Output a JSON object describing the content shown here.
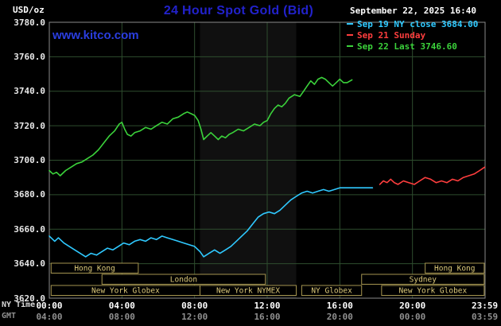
{
  "header": {
    "unit_label": "USD/oz",
    "title": "24 Hour Spot Gold (Bid)",
    "datetime": "September 22, 2025 16:40",
    "watermark": "www.kitco.com"
  },
  "legend": [
    {
      "label": "Sep 19 NY close 3684.00",
      "color": "#2fc9ff"
    },
    {
      "label": "Sep 21 Sunday",
      "color": "#ff3e3e"
    },
    {
      "label": "Sep 22 Last 3746.60",
      "color": "#3bd23b"
    }
  ],
  "colors": {
    "background": "#000000",
    "grid": "#2e4d2e",
    "border": "#8a8a8a",
    "band": "#101010",
    "session_border": "#a59550",
    "session_text": "#dcc97a",
    "title": "#2222cc",
    "watermark": "#2a3ee0",
    "axis_text": "#e8e8e8"
  },
  "axes": {
    "y_unit": "USD/oz",
    "x_rows": [
      {
        "label": "NY Time",
        "color": "#d8d8d8",
        "tick_color": "#ffffff",
        "ticks": [
          "00:00",
          "04:00",
          "08:00",
          "12:00",
          "16:00",
          "20:00",
          "23:59"
        ]
      },
      {
        "label": "GMT",
        "color": "#909090",
        "tick_color": "#909090",
        "ticks": [
          "04:00",
          "08:00",
          "12:00",
          "16:00",
          "20:00",
          "00:00",
          "03:59"
        ]
      }
    ]
  },
  "chart_data": {
    "type": "line",
    "title": "24 Hour Spot Gold (Bid)",
    "xlabel": "NY Time (hours)",
    "ylabel": "USD/oz",
    "xlim": [
      0,
      24
    ],
    "ylim": [
      3620,
      3780
    ],
    "grid": true,
    "legend_position": "top-right",
    "y_ticks": [
      3780,
      3760,
      3740,
      3720,
      3700,
      3680,
      3660,
      3640,
      3620
    ],
    "x_tick_hours": [
      0,
      4,
      8,
      12,
      16,
      20,
      23.983
    ],
    "band": {
      "start": 8.3,
      "end": 13.6
    },
    "series": [
      {
        "name": "sep19-ny-close",
        "label": "Sep 19 NY close 3684.00",
        "color": "#2fc9ff",
        "close": 3684.0,
        "points": [
          [
            0,
            3656
          ],
          [
            0.3,
            3653
          ],
          [
            0.5,
            3655
          ],
          [
            0.8,
            3652
          ],
          [
            1.1,
            3650
          ],
          [
            1.4,
            3648
          ],
          [
            1.7,
            3646
          ],
          [
            2,
            3644
          ],
          [
            2.3,
            3646
          ],
          [
            2.6,
            3645
          ],
          [
            2.9,
            3647
          ],
          [
            3.2,
            3649
          ],
          [
            3.5,
            3648
          ],
          [
            3.8,
            3650
          ],
          [
            4.1,
            3652
          ],
          [
            4.4,
            3651
          ],
          [
            4.7,
            3653
          ],
          [
            5,
            3654
          ],
          [
            5.3,
            3653
          ],
          [
            5.6,
            3655
          ],
          [
            5.9,
            3654
          ],
          [
            6.2,
            3656
          ],
          [
            6.5,
            3655
          ],
          [
            6.8,
            3654
          ],
          [
            7.1,
            3653
          ],
          [
            7.4,
            3652
          ],
          [
            7.7,
            3651
          ],
          [
            8,
            3650
          ],
          [
            8.3,
            3647
          ],
          [
            8.5,
            3644
          ],
          [
            8.8,
            3646
          ],
          [
            9.1,
            3648
          ],
          [
            9.4,
            3646
          ],
          [
            9.7,
            3648
          ],
          [
            10,
            3650
          ],
          [
            10.3,
            3653
          ],
          [
            10.6,
            3656
          ],
          [
            10.9,
            3659
          ],
          [
            11.2,
            3663
          ],
          [
            11.5,
            3667
          ],
          [
            11.8,
            3669
          ],
          [
            12.1,
            3670
          ],
          [
            12.4,
            3669
          ],
          [
            12.7,
            3671
          ],
          [
            13,
            3674
          ],
          [
            13.3,
            3677
          ],
          [
            13.6,
            3679
          ],
          [
            13.9,
            3681
          ],
          [
            14.2,
            3682
          ],
          [
            14.5,
            3681
          ],
          [
            14.8,
            3682
          ],
          [
            15.1,
            3683
          ],
          [
            15.4,
            3682
          ],
          [
            15.7,
            3683
          ],
          [
            16,
            3684
          ],
          [
            16.5,
            3684
          ],
          [
            17,
            3684
          ],
          [
            17.8,
            3684
          ]
        ]
      },
      {
        "name": "sep21-sunday",
        "label": "Sep 21 Sunday",
        "color": "#ff3e3e",
        "points": [
          [
            18.2,
            3686
          ],
          [
            18.4,
            3688
          ],
          [
            18.6,
            3687
          ],
          [
            18.8,
            3689
          ],
          [
            19,
            3687
          ],
          [
            19.2,
            3686
          ],
          [
            19.5,
            3688
          ],
          [
            19.8,
            3687
          ],
          [
            20.1,
            3686
          ],
          [
            20.4,
            3688
          ],
          [
            20.7,
            3690
          ],
          [
            21,
            3689
          ],
          [
            21.3,
            3687
          ],
          [
            21.6,
            3688
          ],
          [
            21.9,
            3687
          ],
          [
            22.2,
            3689
          ],
          [
            22.5,
            3688
          ],
          [
            22.8,
            3690
          ],
          [
            23.1,
            3691
          ],
          [
            23.4,
            3692
          ],
          [
            23.7,
            3694
          ],
          [
            23.98,
            3696
          ]
        ]
      },
      {
        "name": "sep22-last",
        "label": "Sep 22 Last 3746.60",
        "color": "#3bd23b",
        "last": 3746.6,
        "points": [
          [
            0,
            3694
          ],
          [
            0.2,
            3692
          ],
          [
            0.4,
            3693
          ],
          [
            0.6,
            3691
          ],
          [
            0.9,
            3694
          ],
          [
            1.2,
            3696
          ],
          [
            1.5,
            3698
          ],
          [
            1.8,
            3699
          ],
          [
            2.1,
            3701
          ],
          [
            2.4,
            3703
          ],
          [
            2.7,
            3706
          ],
          [
            3,
            3710
          ],
          [
            3.3,
            3714
          ],
          [
            3.6,
            3717
          ],
          [
            3.85,
            3721
          ],
          [
            4,
            3722
          ],
          [
            4.15,
            3718
          ],
          [
            4.3,
            3715
          ],
          [
            4.5,
            3714
          ],
          [
            4.7,
            3716
          ],
          [
            5,
            3717
          ],
          [
            5.3,
            3719
          ],
          [
            5.6,
            3718
          ],
          [
            5.9,
            3720
          ],
          [
            6.2,
            3722
          ],
          [
            6.5,
            3721
          ],
          [
            6.8,
            3724
          ],
          [
            7.1,
            3725
          ],
          [
            7.4,
            3727
          ],
          [
            7.6,
            3728
          ],
          [
            7.8,
            3727
          ],
          [
            8,
            3726
          ],
          [
            8.2,
            3723
          ],
          [
            8.35,
            3718
          ],
          [
            8.5,
            3712
          ],
          [
            8.7,
            3714
          ],
          [
            8.9,
            3716
          ],
          [
            9.1,
            3714
          ],
          [
            9.3,
            3712
          ],
          [
            9.5,
            3714
          ],
          [
            9.7,
            3713
          ],
          [
            9.9,
            3715
          ],
          [
            10.1,
            3716
          ],
          [
            10.4,
            3718
          ],
          [
            10.7,
            3717
          ],
          [
            11,
            3719
          ],
          [
            11.3,
            3721
          ],
          [
            11.6,
            3720
          ],
          [
            11.8,
            3722
          ],
          [
            12,
            3723
          ],
          [
            12.2,
            3727
          ],
          [
            12.4,
            3730
          ],
          [
            12.6,
            3732
          ],
          [
            12.8,
            3731
          ],
          [
            13,
            3733
          ],
          [
            13.2,
            3736
          ],
          [
            13.5,
            3738
          ],
          [
            13.8,
            3737
          ],
          [
            14,
            3740
          ],
          [
            14.2,
            3743
          ],
          [
            14.4,
            3746
          ],
          [
            14.6,
            3744
          ],
          [
            14.8,
            3747
          ],
          [
            15,
            3748
          ],
          [
            15.2,
            3747
          ],
          [
            15.4,
            3745
          ],
          [
            15.6,
            3743
          ],
          [
            15.8,
            3745
          ],
          [
            16,
            3747
          ],
          [
            16.2,
            3745
          ],
          [
            16.4,
            3745
          ],
          [
            16.67,
            3746.6
          ]
        ]
      }
    ],
    "sessions": [
      {
        "row": 0,
        "start": 0.1,
        "end": 4.9,
        "label": "Hong Kong"
      },
      {
        "row": 0,
        "start": 20.7,
        "end": 23.95,
        "label": "Hong Kong"
      },
      {
        "row": 1,
        "start": 2.9,
        "end": 11.9,
        "label": "London"
      },
      {
        "row": 1,
        "start": 17.2,
        "end": 23.95,
        "label": "Sydney"
      },
      {
        "row": 2,
        "start": 0.1,
        "end": 8.3,
        "label": "New York Globex"
      },
      {
        "row": 2,
        "start": 8.3,
        "end": 13.6,
        "label": "New York NYMEX"
      },
      {
        "row": 2,
        "start": 13.9,
        "end": 17.2,
        "label": "NY Globex"
      },
      {
        "row": 2,
        "start": 18.3,
        "end": 23.95,
        "label": "New York Globex"
      }
    ]
  }
}
